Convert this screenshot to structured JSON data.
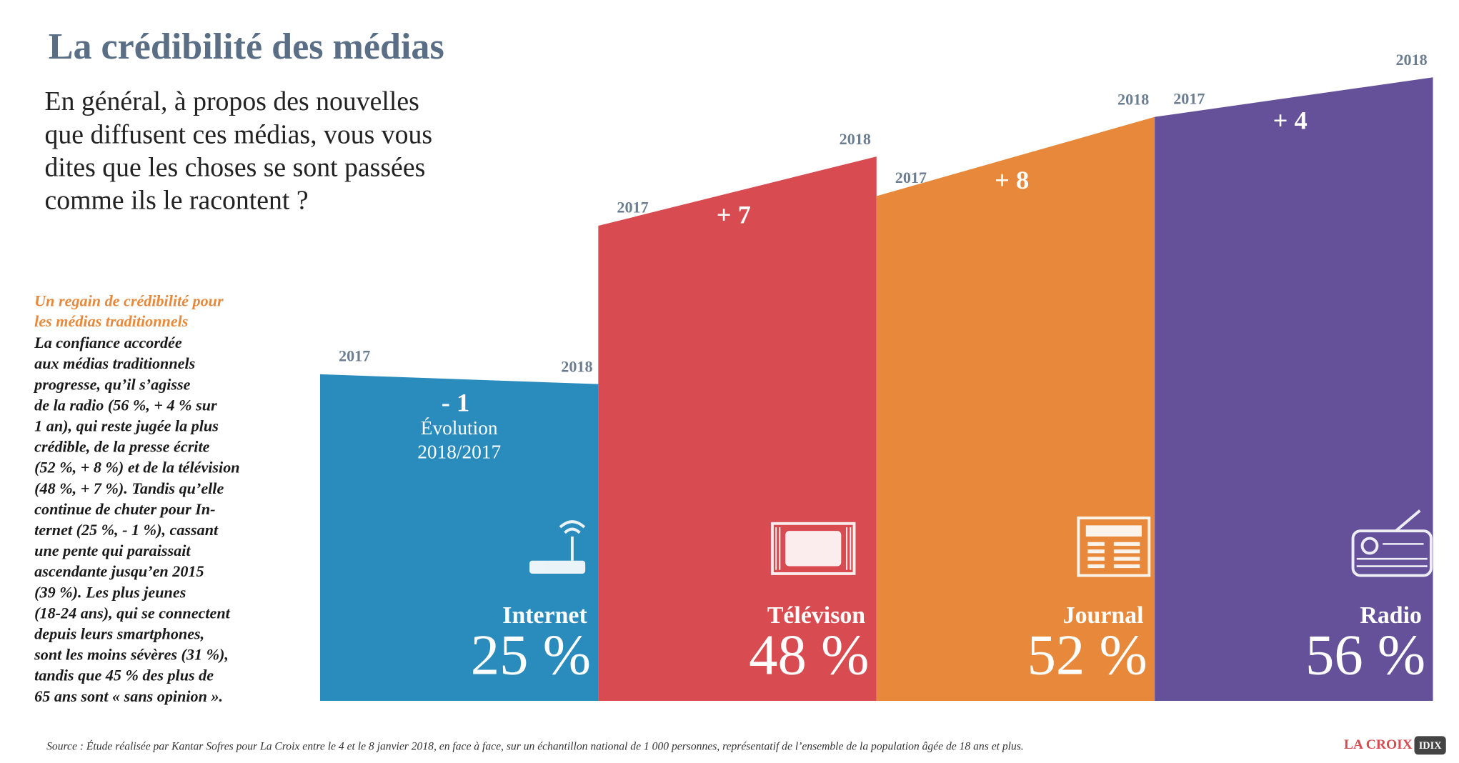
{
  "chart_data": {
    "type": "slope-bar",
    "title": "La crédibilité des médias",
    "subtitle": [
      "En général, à propos des nouvelles",
      "que diffusent ces médias, vous vous",
      "dites que les choses se sont passées",
      "comme ils le racontent ?"
    ],
    "note_heading": [
      "Un regain de crédibilité pour",
      "les médias traditionnels"
    ],
    "note_body": [
      "La confiance accordée",
      "aux médias traditionnels",
      "progresse, qu’il s’agisse",
      "de la radio (56 %, + 4 % sur",
      "1 an), qui reste jugée la plus",
      "crédible, de la presse écrite",
      "(52 %, + 8 %) et de la télévision",
      "(48 %, + 7 %). Tandis qu’elle",
      "continue de chuter pour In-",
      "ternet (25 %, - 1 %), cassant",
      "une pente qui paraissait",
      "ascendante jusqu’en 2015",
      "(39 %). Les plus jeunes",
      "(18-24 ans), qui se connectent",
      "depuis leurs smartphones,",
      "sont les moins sévères (31 %),",
      "tandis que 45 % des plus de",
      "65 ans sont « sans opinion »."
    ],
    "annotation": [
      "Évolution",
      "2018/2017"
    ],
    "categories": [
      "Internet",
      "Télévison",
      "Journal",
      "Radio"
    ],
    "colors": [
      "#2a8bbd",
      "#d84b50",
      "#e8883a",
      "#64519a"
    ],
    "series": [
      {
        "name": "2017",
        "values": [
          26,
          41,
          44,
          52
        ]
      },
      {
        "name": "2018",
        "values": [
          25,
          48,
          52,
          56
        ],
        "value_labels": [
          "25 %",
          "48 %",
          "52 %",
          "56 %"
        ]
      }
    ],
    "change_labels": [
      "- 1",
      "+ 7",
      "+ 8",
      "+ 4"
    ],
    "ylim": [
      -7,
      58
    ],
    "source": "Source : Étude réalisée par Kantar Sofres pour La Croix entre le 4 et le 8 janvier 2018, en face à face, sur un échantillon national de 1 000 personnes, représentatif de l’ensemble de la population âgée de 18 ans et plus.",
    "logo": "LA CROIX",
    "logo_badge": "IDIX"
  }
}
